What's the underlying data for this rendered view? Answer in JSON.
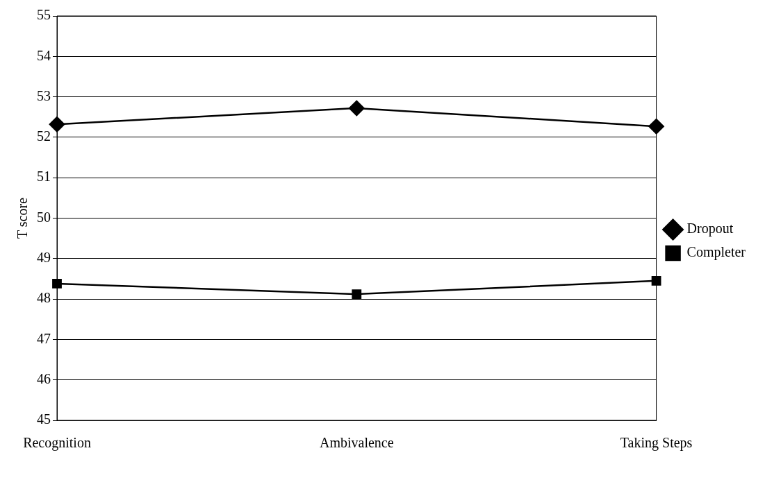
{
  "chart_data": {
    "type": "line",
    "ylabel": "T score",
    "categories": [
      "Recognition",
      "Ambivalence",
      "Taking Steps"
    ],
    "series": [
      {
        "name": "Dropout",
        "color": "#000000",
        "marker": "diamond",
        "values": [
          52.32,
          52.72,
          52.27
        ]
      },
      {
        "name": "Completer",
        "color": "#000000",
        "marker": "square",
        "values": [
          48.38,
          48.12,
          48.45
        ]
      }
    ],
    "ylim": [
      45,
      55
    ],
    "yticks": [
      45,
      46,
      47,
      48,
      49,
      50,
      51,
      52,
      53,
      54,
      55
    ],
    "grid": "y",
    "legend": "right",
    "line_style": "solid"
  }
}
